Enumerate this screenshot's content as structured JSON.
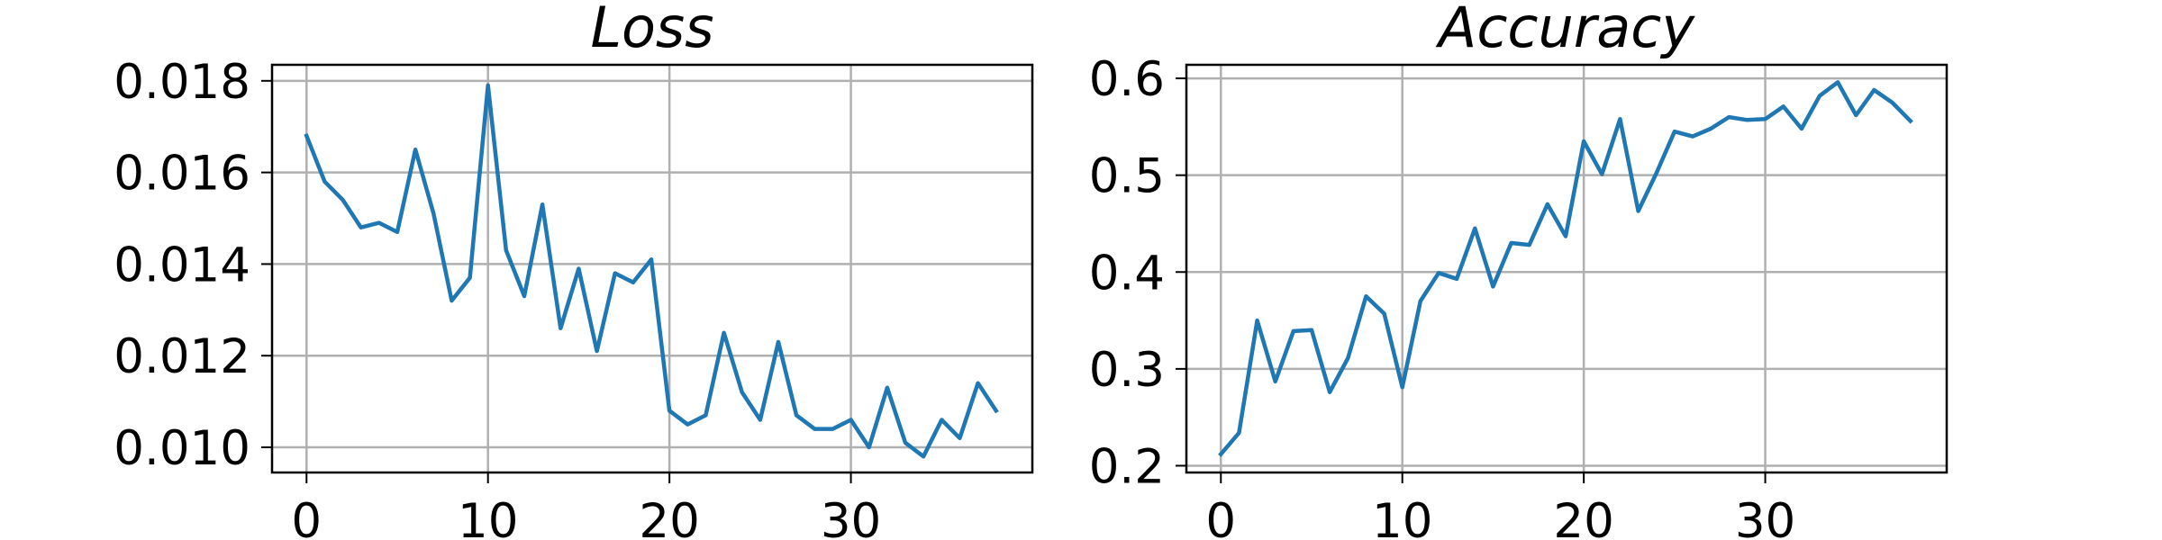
{
  "chart_data": [
    {
      "type": "line",
      "title": "Loss",
      "xlabel": "",
      "ylabel": "",
      "x": [
        0,
        1,
        2,
        3,
        4,
        5,
        6,
        7,
        8,
        9,
        10,
        11,
        12,
        13,
        14,
        15,
        16,
        17,
        18,
        19,
        20,
        21,
        22,
        23,
        24,
        25,
        26,
        27,
        28,
        29,
        30,
        31,
        32,
        33,
        34,
        35,
        36,
        37,
        38
      ],
      "series": [
        {
          "values": [
            0.0168,
            0.0158,
            0.0154,
            0.0148,
            0.0149,
            0.0147,
            0.0165,
            0.0151,
            0.0132,
            0.0137,
            0.0179,
            0.0143,
            0.0133,
            0.0153,
            0.0126,
            0.0139,
            0.0121,
            0.0138,
            0.0136,
            0.0141,
            0.0108,
            0.0105,
            0.0107,
            0.0125,
            0.0112,
            0.0106,
            0.0123,
            0.0107,
            0.0104,
            0.0104,
            0.0106,
            0.01,
            0.0113,
            0.0101,
            0.0098,
            0.0106,
            0.0102,
            0.0114,
            0.0108
          ],
          "color": "#1f77b4"
        }
      ],
      "xticks": [
        0,
        10,
        20,
        30
      ],
      "xtick_labels": [
        "0",
        "10",
        "20",
        "30"
      ],
      "yticks": [
        0.01,
        0.012,
        0.014,
        0.016,
        0.018
      ],
      "ytick_labels": [
        "0.010",
        "0.012",
        "0.014",
        "0.016",
        "0.018"
      ],
      "xlim": [
        -1.9,
        40.0
      ],
      "ylim": [
        0.00945,
        0.01835
      ],
      "grid": true
    },
    {
      "type": "line",
      "title": "Accuracy",
      "xlabel": "",
      "ylabel": "",
      "x": [
        0,
        1,
        2,
        3,
        4,
        5,
        6,
        7,
        8,
        9,
        10,
        11,
        12,
        13,
        14,
        15,
        16,
        17,
        18,
        19,
        20,
        21,
        22,
        23,
        24,
        25,
        26,
        27,
        28,
        29,
        30,
        31,
        32,
        33,
        34,
        35,
        36,
        37,
        38
      ],
      "series": [
        {
          "values": [
            0.212,
            0.234,
            0.35,
            0.287,
            0.339,
            0.34,
            0.276,
            0.311,
            0.375,
            0.357,
            0.281,
            0.37,
            0.399,
            0.393,
            0.445,
            0.385,
            0.43,
            0.428,
            0.47,
            0.437,
            0.535,
            0.501,
            0.558,
            0.463,
            0.502,
            0.545,
            0.54,
            0.548,
            0.56,
            0.557,
            0.558,
            0.571,
            0.548,
            0.582,
            0.596,
            0.562,
            0.588,
            0.575,
            0.556
          ],
          "color": "#1f77b4"
        }
      ],
      "xticks": [
        0,
        10,
        20,
        30
      ],
      "xtick_labels": [
        "0",
        "10",
        "20",
        "30"
      ],
      "yticks": [
        0.2,
        0.3,
        0.4,
        0.5,
        0.6
      ],
      "ytick_labels": [
        "0.2",
        "0.3",
        "0.4",
        "0.5",
        "0.6"
      ],
      "xlim": [
        -1.9,
        40.0
      ],
      "ylim": [
        0.193,
        0.614
      ],
      "grid": true
    }
  ]
}
